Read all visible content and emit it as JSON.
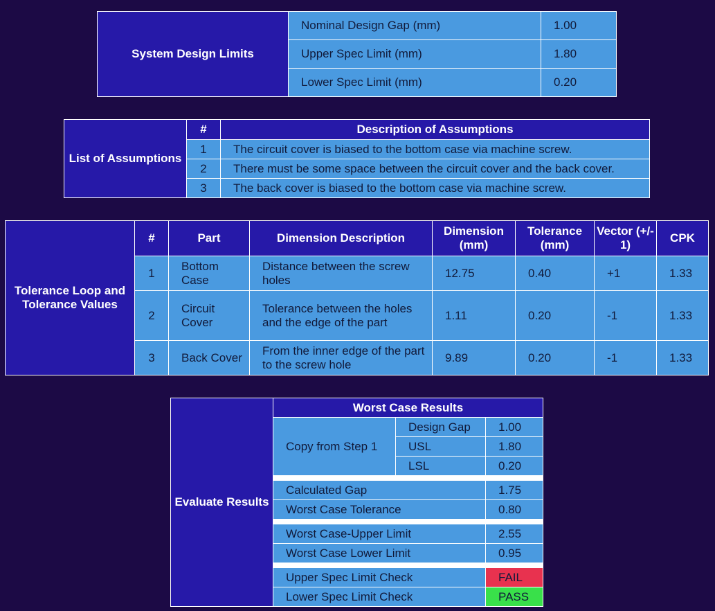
{
  "system_limits": {
    "title": "System Design Limits",
    "rows": [
      {
        "label": "Nominal Design Gap (mm)",
        "value": "1.00"
      },
      {
        "label": "Upper Spec Limit (mm)",
        "value": "1.80"
      },
      {
        "label": "Lower Spec Limit (mm)",
        "value": "0.20"
      }
    ]
  },
  "assumptions": {
    "title": "List of Assumptions",
    "col_num": "#",
    "col_desc": "Description of Assumptions",
    "rows": [
      {
        "num": "1",
        "text": "The circuit cover is biased to the bottom case via machine screw."
      },
      {
        "num": "2",
        "text": "There must be some space between the circuit cover and the back cover."
      },
      {
        "num": "3",
        "text": "The back cover is biased to the bottom case via machine screw."
      }
    ]
  },
  "tolerance": {
    "title": "Tolerance Loop and Tolerance Values",
    "headers": {
      "num": "#",
      "part": "Part",
      "desc": "Dimension Description",
      "dim": "Dimension (mm)",
      "tol": "Tolerance (mm)",
      "vec": "Vector (+/- 1)",
      "cpk": "CPK"
    },
    "rows": [
      {
        "num": "1",
        "part": "Bottom Case",
        "desc": "Distance between the screw holes",
        "dim": "12.75",
        "tol": "0.40",
        "vec": "+1",
        "cpk": "1.33"
      },
      {
        "num": "2",
        "part": "Circuit Cover",
        "desc": "Tolerance between the holes and the edge of the part",
        "dim": "1.11",
        "tol": "0.20",
        "vec": "-1",
        "cpk": "1.33"
      },
      {
        "num": "3",
        "part": "Back Cover",
        "desc": "From the inner edge of the part to the screw hole",
        "dim": "9.89",
        "tol": "0.20",
        "vec": "-1",
        "cpk": "1.33"
      }
    ]
  },
  "results": {
    "title": "Evaluate Results",
    "header": "Worst Case Results",
    "copy_label": "Copy from Step 1",
    "copy_rows": [
      {
        "label": "Design Gap",
        "value": "1.00"
      },
      {
        "label": "USL",
        "value": "1.80"
      },
      {
        "label": "LSL",
        "value": "0.20"
      }
    ],
    "calc_rows": [
      {
        "label": "Calculated Gap",
        "value": "1.75"
      },
      {
        "label": "Worst Case Tolerance",
        "value": "0.80"
      }
    ],
    "limit_rows": [
      {
        "label": "Worst Case-Upper Limit",
        "value": "2.55"
      },
      {
        "label": "Worst Case Lower Limit",
        "value": "0.95"
      }
    ],
    "check_rows": [
      {
        "label": "Upper Spec Limit Check",
        "value": "FAIL",
        "status_color": "#e8324f"
      },
      {
        "label": "Lower Spec Limit Check",
        "value": "PASS",
        "status_color": "#39e04a"
      }
    ]
  }
}
